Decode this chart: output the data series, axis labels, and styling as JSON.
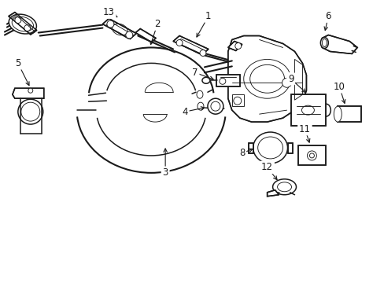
{
  "background_color": "#ffffff",
  "line_color": "#1a1a1a",
  "fig_width": 4.89,
  "fig_height": 3.6,
  "dpi": 100,
  "label_fontsize": 8.5,
  "lw_main": 1.1,
  "lw_thin": 0.65,
  "lw_heavy": 1.5
}
